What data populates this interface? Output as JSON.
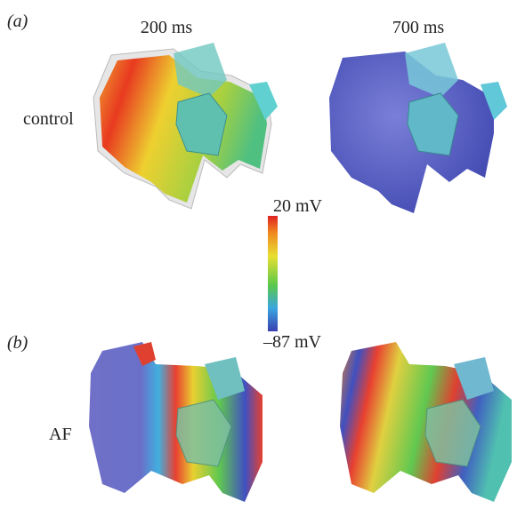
{
  "panels": {
    "a": {
      "label": "(a)",
      "row_label": "control"
    },
    "b": {
      "label": "(b)",
      "row_label": "AF"
    }
  },
  "columns": [
    "200 ms",
    "700 ms"
  ],
  "colorbar": {
    "max_label": "20 mV",
    "min_label": "–87 mV"
  }
}
